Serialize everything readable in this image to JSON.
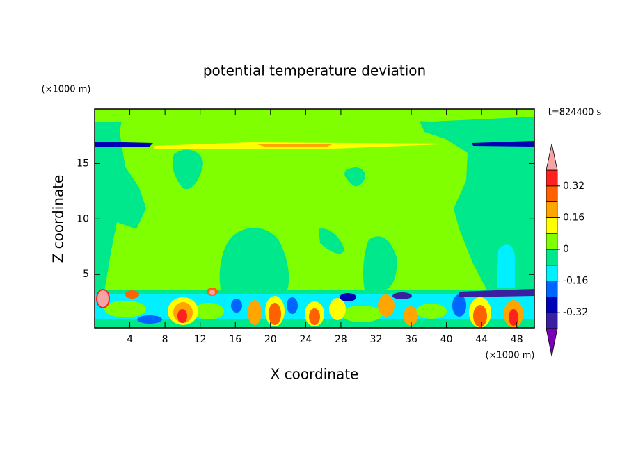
{
  "chart_data": {
    "type": "contour",
    "title": "potential temperature deviation",
    "x_label": "X coordinate",
    "y_label": "Z coordinate",
    "x_unit": "(×1000 m)",
    "y_unit": "(×1000 m)",
    "annotation": "t=824400 s",
    "xlim": [
      0,
      50
    ],
    "ylim": [
      0.2,
      19.9
    ],
    "xticks": [
      4,
      8,
      12,
      16,
      20,
      24,
      28,
      32,
      36,
      40,
      44,
      48
    ],
    "yticks": [
      5,
      10,
      15
    ],
    "colorbar": {
      "levels": [
        -0.4,
        -0.32,
        -0.24,
        -0.16,
        -0.08,
        0,
        0.08,
        0.16,
        0.24,
        0.32,
        0.4
      ],
      "colors": [
        "#3a1fa0",
        "#0000b4",
        "#0064ff",
        "#00f0ff",
        "#00e88c",
        "#80ff00",
        "#ffff00",
        "#ffa500",
        "#ff6000",
        "#ff2020"
      ],
      "under_color": "#7a00b8",
      "over_color": "#f4a4a4",
      "ticks": [
        -0.32,
        -0.16,
        0,
        0.16,
        0.32
      ]
    }
  }
}
